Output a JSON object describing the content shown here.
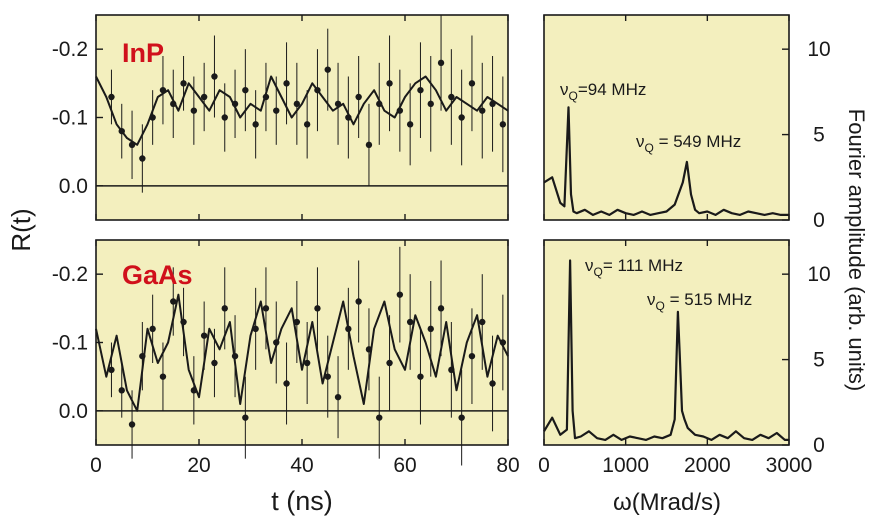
{
  "figure": {
    "ylabel_left": "R(t)",
    "xlabel_left": "t (ns)",
    "xlabel_right": "ω(Mrad/s)",
    "ylabel_right": "Fourier amplitude (arb. units)"
  },
  "colors": {
    "panel_bg": "#f3efbe",
    "data": "#1a1a1a",
    "sample_label": "#d0101b"
  },
  "chart_data": [
    {
      "type": "scatter",
      "panel": "InP R(t)",
      "sample_label": "InP",
      "xlim": [
        0,
        80
      ],
      "ylim": [
        0.05,
        -0.25
      ],
      "yticks": [
        "-0.2",
        "-0.1",
        "0.0"
      ],
      "ytick_values": [
        -0.2,
        -0.1,
        0.0
      ],
      "reference_line": 0.0,
      "data": {
        "x": [
          3,
          5,
          7,
          9,
          11,
          13,
          15,
          17,
          19,
          21,
          23,
          25,
          27,
          29,
          31,
          33,
          35,
          37,
          39,
          41,
          43,
          45,
          47,
          49,
          51,
          53,
          55,
          57,
          59,
          61,
          63,
          65,
          67,
          69,
          71,
          73,
          75,
          77,
          79
        ],
        "y": [
          -0.13,
          -0.08,
          -0.06,
          -0.04,
          -0.1,
          -0.14,
          -0.12,
          -0.15,
          -0.11,
          -0.13,
          -0.16,
          -0.1,
          -0.12,
          -0.14,
          -0.09,
          -0.13,
          -0.11,
          -0.15,
          -0.12,
          -0.09,
          -0.14,
          -0.17,
          -0.12,
          -0.1,
          -0.13,
          -0.06,
          -0.12,
          -0.15,
          -0.11,
          -0.09,
          -0.14,
          -0.12,
          -0.18,
          -0.13,
          -0.1,
          -0.15,
          -0.11,
          -0.12,
          -0.09
        ],
        "err": [
          0.04,
          0.04,
          0.05,
          0.05,
          0.04,
          0.05,
          0.05,
          0.04,
          0.05,
          0.05,
          0.06,
          0.05,
          0.05,
          0.06,
          0.05,
          0.05,
          0.05,
          0.06,
          0.06,
          0.05,
          0.06,
          0.06,
          0.06,
          0.06,
          0.06,
          0.06,
          0.06,
          0.07,
          0.06,
          0.06,
          0.07,
          0.07,
          0.07,
          0.07,
          0.07,
          0.07,
          0.07,
          0.07,
          0.07
        ]
      },
      "fit": {
        "x": [
          0,
          2,
          4,
          6,
          8,
          10,
          12,
          14,
          16,
          18,
          20,
          22,
          24,
          26,
          28,
          30,
          32,
          34,
          36,
          38,
          40,
          42,
          44,
          46,
          48,
          50,
          52,
          54,
          56,
          58,
          60,
          62,
          64,
          66,
          68,
          70,
          72,
          74,
          76,
          78,
          80
        ],
        "y": [
          -0.16,
          -0.13,
          -0.09,
          -0.07,
          -0.06,
          -0.09,
          -0.13,
          -0.14,
          -0.11,
          -0.15,
          -0.13,
          -0.11,
          -0.14,
          -0.13,
          -0.1,
          -0.12,
          -0.11,
          -0.16,
          -0.13,
          -0.1,
          -0.12,
          -0.15,
          -0.13,
          -0.11,
          -0.12,
          -0.09,
          -0.12,
          -0.14,
          -0.11,
          -0.1,
          -0.13,
          -0.15,
          -0.16,
          -0.14,
          -0.11,
          -0.13,
          -0.12,
          -0.11,
          -0.13,
          -0.12,
          -0.11
        ]
      }
    },
    {
      "type": "line",
      "panel": "InP Fourier",
      "xlim": [
        0,
        3000
      ],
      "ylim": [
        0,
        12
      ],
      "yticks": [
        "0",
        "5",
        "10"
      ],
      "ytick_values": [
        0,
        5,
        10
      ],
      "x": [
        0,
        100,
        200,
        250,
        300,
        330,
        360,
        400,
        500,
        600,
        700,
        800,
        900,
        1000,
        1100,
        1200,
        1300,
        1400,
        1500,
        1600,
        1700,
        1750,
        1800,
        1850,
        1900,
        2000,
        2100,
        2200,
        2300,
        2400,
        2500,
        2600,
        2700,
        2800,
        2900,
        3000
      ],
      "y": [
        2.2,
        2.5,
        1.0,
        0.8,
        6.6,
        1.5,
        0.5,
        0.4,
        0.6,
        0.3,
        0.5,
        0.3,
        0.6,
        0.4,
        0.3,
        0.5,
        0.3,
        0.4,
        0.5,
        0.9,
        2.2,
        3.4,
        1.5,
        0.6,
        0.4,
        0.5,
        0.3,
        0.6,
        0.4,
        0.3,
        0.5,
        0.4,
        0.3,
        0.4,
        0.3,
        0.3
      ],
      "annotations": [
        {
          "symbol": "ν",
          "subscript": "Q",
          "text": "=94 MHz"
        },
        {
          "symbol": "ν",
          "subscript": "Q",
          "text": " = 549 MHz"
        }
      ]
    },
    {
      "type": "scatter",
      "panel": "GaAs R(t)",
      "sample_label": "GaAs",
      "xlim": [
        0,
        80
      ],
      "ylim": [
        0.05,
        -0.25
      ],
      "yticks": [
        "-0.2",
        "-0.1",
        "0.0"
      ],
      "ytick_values": [
        -0.2,
        -0.1,
        0.0
      ],
      "reference_line": 0.0,
      "data": {
        "x": [
          3,
          5,
          7,
          9,
          11,
          13,
          15,
          17,
          19,
          21,
          23,
          25,
          27,
          29,
          31,
          33,
          35,
          37,
          39,
          41,
          43,
          45,
          47,
          49,
          51,
          53,
          55,
          57,
          59,
          61,
          63,
          65,
          67,
          69,
          71,
          73,
          75,
          77,
          79
        ],
        "y": [
          -0.06,
          -0.03,
          0.02,
          -0.08,
          -0.12,
          -0.05,
          -0.16,
          -0.13,
          -0.03,
          -0.11,
          -0.07,
          -0.15,
          -0.08,
          0.01,
          -0.12,
          -0.15,
          -0.1,
          -0.04,
          -0.13,
          -0.07,
          -0.15,
          -0.05,
          -0.02,
          -0.12,
          -0.16,
          -0.09,
          0.01,
          -0.07,
          -0.17,
          -0.13,
          -0.05,
          -0.12,
          -0.15,
          -0.06,
          0.01,
          -0.08,
          -0.13,
          -0.04,
          -0.1
        ],
        "err": [
          0.04,
          0.04,
          0.05,
          0.05,
          0.05,
          0.05,
          0.05,
          0.05,
          0.05,
          0.05,
          0.05,
          0.06,
          0.06,
          0.06,
          0.06,
          0.06,
          0.06,
          0.06,
          0.06,
          0.06,
          0.06,
          0.06,
          0.06,
          0.06,
          0.06,
          0.06,
          0.06,
          0.07,
          0.07,
          0.07,
          0.07,
          0.07,
          0.07,
          0.07,
          0.07,
          0.07,
          0.07,
          0.07,
          0.07
        ]
      },
      "fit": {
        "x": [
          0,
          2,
          4,
          6,
          8,
          10,
          12,
          14,
          16,
          18,
          20,
          22,
          24,
          26,
          28,
          30,
          32,
          34,
          36,
          38,
          40,
          42,
          44,
          46,
          48,
          50,
          52,
          54,
          56,
          58,
          60,
          62,
          64,
          66,
          68,
          70,
          72,
          74,
          76,
          78,
          80
        ],
        "y": [
          -0.12,
          -0.05,
          -0.11,
          -0.03,
          0.0,
          -0.12,
          -0.07,
          -0.1,
          -0.17,
          -0.06,
          -0.02,
          -0.12,
          -0.09,
          -0.13,
          -0.01,
          -0.11,
          -0.16,
          -0.07,
          -0.12,
          -0.15,
          -0.06,
          -0.13,
          -0.04,
          -0.1,
          -0.16,
          -0.08,
          -0.01,
          -0.12,
          -0.16,
          -0.09,
          -0.06,
          -0.14,
          -0.1,
          -0.05,
          -0.13,
          -0.03,
          -0.1,
          -0.14,
          -0.05,
          -0.11,
          -0.08
        ]
      }
    },
    {
      "type": "line",
      "panel": "GaAs Fourier",
      "xlim": [
        0,
        3000
      ],
      "ylim": [
        0,
        12
      ],
      "yticks": [
        "0",
        "5",
        "10"
      ],
      "ytick_values": [
        0,
        5,
        10
      ],
      "x": [
        0,
        100,
        200,
        280,
        320,
        350,
        380,
        450,
        550,
        650,
        750,
        850,
        950,
        1050,
        1150,
        1250,
        1350,
        1450,
        1550,
        1600,
        1640,
        1660,
        1690,
        1720,
        1760,
        1850,
        1950,
        2050,
        2150,
        2250,
        2350,
        2450,
        2550,
        2650,
        2750,
        2850,
        2950,
        3000
      ],
      "y": [
        0.8,
        1.6,
        0.6,
        0.9,
        10.8,
        2.0,
        0.4,
        0.5,
        0.8,
        0.4,
        0.3,
        0.6,
        0.3,
        0.5,
        0.4,
        0.3,
        0.5,
        0.4,
        0.6,
        1.5,
        7.8,
        5.5,
        2.0,
        1.5,
        1.0,
        0.6,
        0.5,
        0.3,
        0.6,
        0.4,
        0.8,
        0.4,
        0.3,
        0.6,
        0.4,
        0.7,
        0.3,
        0.3
      ],
      "annotations": [
        {
          "symbol": "ν",
          "subscript": "Q",
          "text": "= 111 MHz"
        },
        {
          "symbol": "ν",
          "subscript": "Q",
          "text": " = 515 MHz"
        }
      ]
    }
  ],
  "xticks_left": [
    "0",
    "20",
    "40",
    "60",
    "80"
  ],
  "xtick_values_left": [
    0,
    20,
    40,
    60,
    80
  ],
  "xticks_right": [
    "0",
    "1000",
    "2000",
    "3000"
  ],
  "xtick_values_right": [
    0,
    1000,
    2000,
    3000
  ]
}
